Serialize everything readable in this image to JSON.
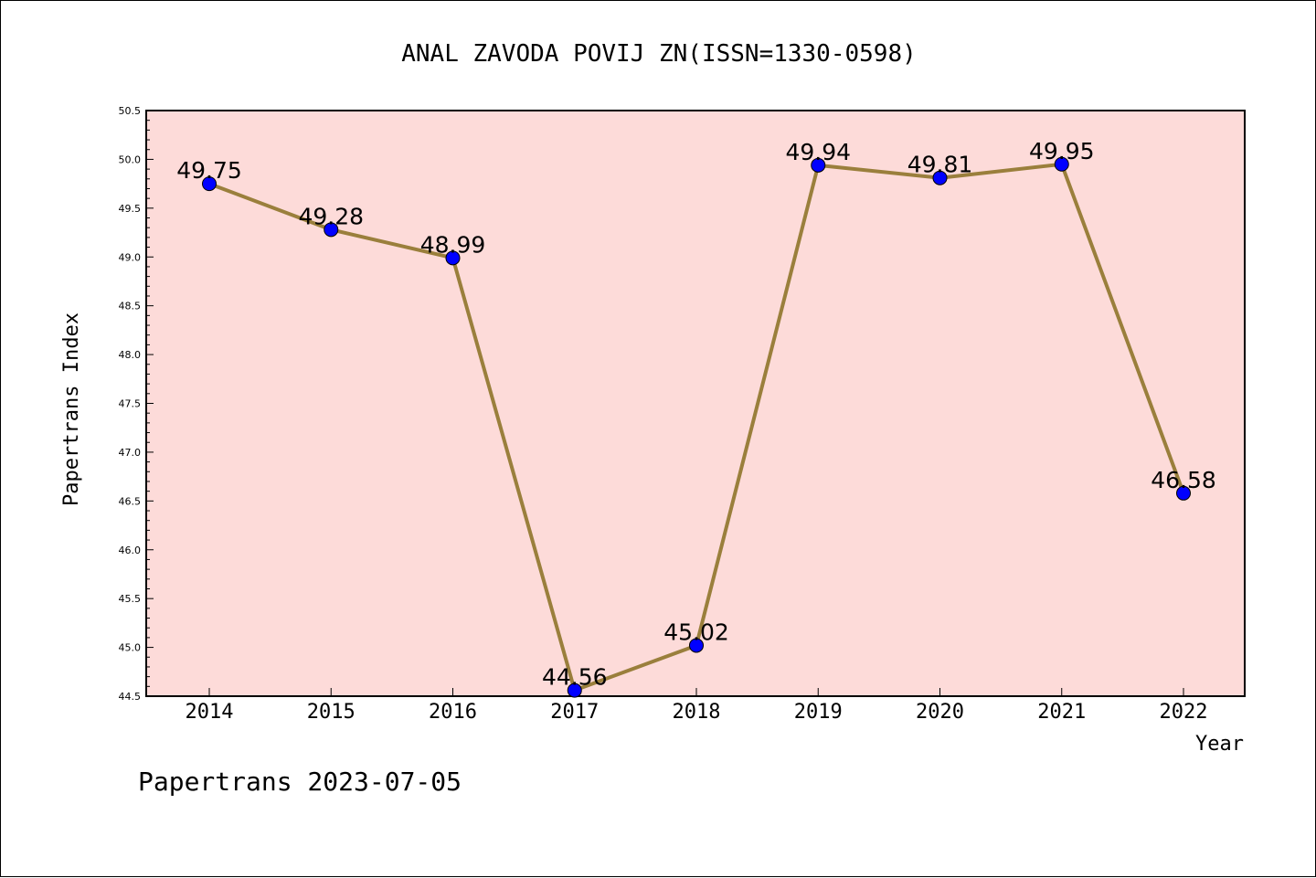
{
  "chart_data": {
    "type": "line",
    "title": "ANAL ZAVODA POVIJ ZN(ISSN=1330-0598)",
    "xlabel": "Year",
    "ylabel": "Papertrans Index",
    "footer": "Papertrans 2023-07-05",
    "x": [
      "2014",
      "2015",
      "2016",
      "2017",
      "2018",
      "2019",
      "2020",
      "2021",
      "2022"
    ],
    "values": [
      49.75,
      49.28,
      48.99,
      44.56,
      45.02,
      49.94,
      49.81,
      49.95,
      46.58
    ],
    "data_labels": [
      "49.75",
      "49.28",
      "48.99",
      "44.56",
      "45.02",
      "49.94",
      "49.81",
      "49.95",
      "46.58"
    ],
    "ylim": [
      44.5,
      50.5
    ],
    "yticks": [
      "44.5",
      "45.0",
      "45.5",
      "46.0",
      "46.5",
      "47.0",
      "47.5",
      "48.0",
      "48.5",
      "49.0",
      "49.5",
      "50.0",
      "50.5"
    ],
    "grid": false,
    "colors": {
      "plot_background": "#fddbd9",
      "line": "#9a7f3c",
      "marker": "#0000ff"
    }
  }
}
